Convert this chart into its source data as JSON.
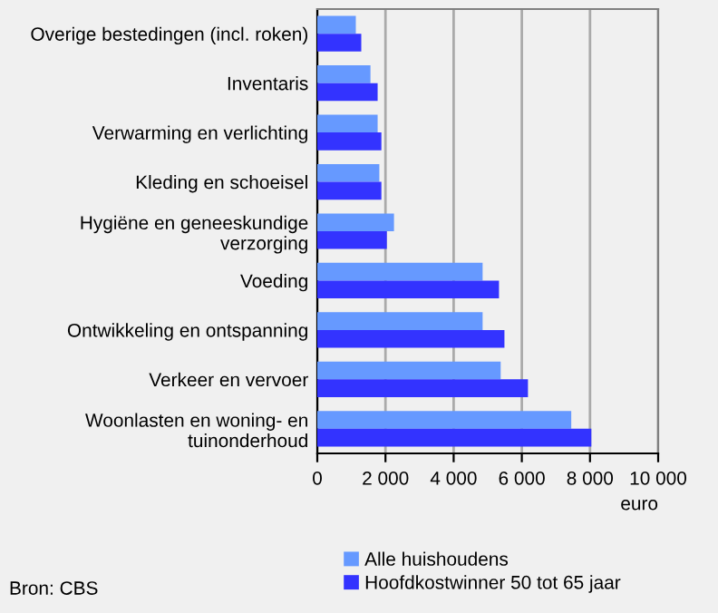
{
  "chart_data": {
    "type": "bar",
    "orientation": "horizontal",
    "categories": [
      "Overige bestedingen (incl. roken)",
      "Inventaris",
      "Verwarming en verlichting",
      "Kleding en schoeisel",
      "Hygiëne en geneeskundige\nverzorging",
      "Voeding",
      "Ontwikkeling en ontspanning",
      "Verkeer en vervoer",
      "Woonlasten en woning- en\ntuinonderhoud"
    ],
    "series": [
      {
        "name": "Alle huishoudens",
        "color": "#6699ff",
        "values": [
          1130,
          1560,
          1770,
          1820,
          2250,
          4850,
          4850,
          5380,
          7450
        ]
      },
      {
        "name": "Hoofdkostwinner 50 tot 65 jaar",
        "color": "#3333ff",
        "values": [
          1290,
          1770,
          1880,
          1880,
          2040,
          5330,
          5490,
          6180,
          8040
        ]
      }
    ],
    "xlim": [
      0,
      10000
    ],
    "xticks": [
      0,
      {
        "value": 2000,
        "label": "2 000"
      },
      {
        "value": 4000,
        "label": "4 000"
      },
      {
        "value": 6000,
        "label": "6 000"
      },
      {
        "value": 8000,
        "label": "8 000"
      },
      {
        "value": 10000,
        "label": "10 000"
      }
    ],
    "xlabel": "euro",
    "grid": "x",
    "legend": "bottom",
    "annotations": [
      "Bron: CBS"
    ]
  }
}
